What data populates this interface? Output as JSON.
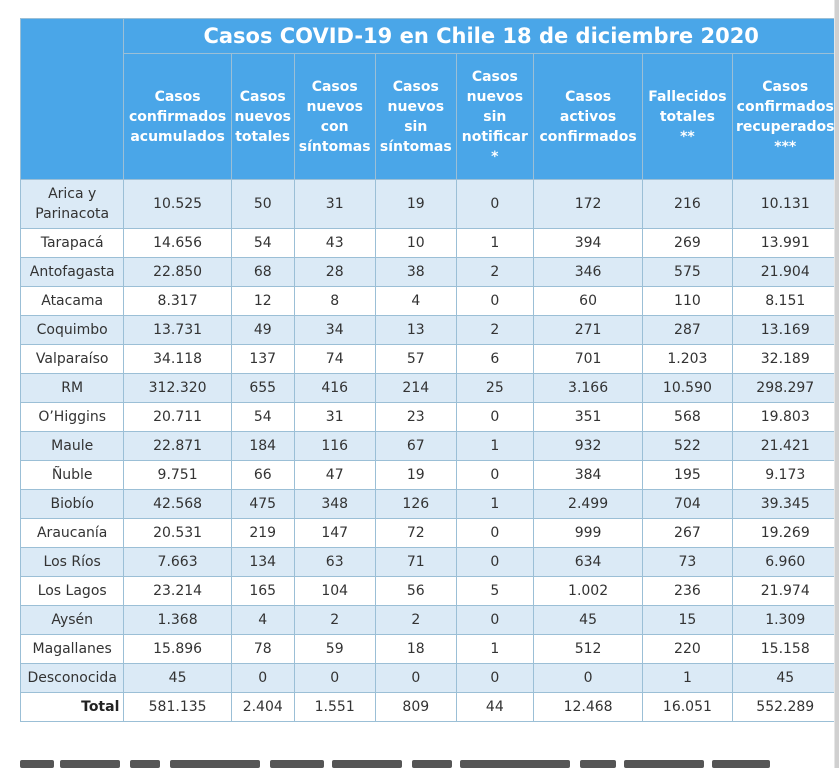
{
  "table": {
    "title": "Casos COVID-19 en Chile 18 de diciembre 2020",
    "headers": [
      [
        "Casos",
        "confirmados",
        "acumulados"
      ],
      [
        "Casos",
        "nuevos",
        "totales"
      ],
      [
        "Casos",
        "nuevos",
        "con",
        "síntomas"
      ],
      [
        "Casos",
        "nuevos",
        "sin",
        "síntomas"
      ],
      [
        "Casos",
        "nuevos",
        "sin",
        "notificar",
        "*"
      ],
      [
        "Casos",
        "activos",
        "confirmados"
      ],
      [
        "Fallecidos",
        "totales",
        "**"
      ],
      [
        "Casos",
        "confirmados",
        "recuperados",
        "***"
      ]
    ],
    "rows": [
      {
        "region": "Arica y Parinacota",
        "values": [
          "10.525",
          "50",
          "31",
          "19",
          "0",
          "172",
          "216",
          "10.131"
        ]
      },
      {
        "region": "Tarapacá",
        "values": [
          "14.656",
          "54",
          "43",
          "10",
          "1",
          "394",
          "269",
          "13.991"
        ]
      },
      {
        "region": "Antofagasta",
        "values": [
          "22.850",
          "68",
          "28",
          "38",
          "2",
          "346",
          "575",
          "21.904"
        ]
      },
      {
        "region": "Atacama",
        "values": [
          "8.317",
          "12",
          "8",
          "4",
          "0",
          "60",
          "110",
          "8.151"
        ]
      },
      {
        "region": "Coquimbo",
        "values": [
          "13.731",
          "49",
          "34",
          "13",
          "2",
          "271",
          "287",
          "13.169"
        ]
      },
      {
        "region": "Valparaíso",
        "values": [
          "34.118",
          "137",
          "74",
          "57",
          "6",
          "701",
          "1.203",
          "32.189"
        ]
      },
      {
        "region": "RM",
        "values": [
          "312.320",
          "655",
          "416",
          "214",
          "25",
          "3.166",
          "10.590",
          "298.297"
        ]
      },
      {
        "region": "O’Higgins",
        "values": [
          "20.711",
          "54",
          "31",
          "23",
          "0",
          "351",
          "568",
          "19.803"
        ]
      },
      {
        "region": "Maule",
        "values": [
          "22.871",
          "184",
          "116",
          "67",
          "1",
          "932",
          "522",
          "21.421"
        ]
      },
      {
        "region": "Ñuble",
        "values": [
          "9.751",
          "66",
          "47",
          "19",
          "0",
          "384",
          "195",
          "9.173"
        ]
      },
      {
        "region": "Biobío",
        "values": [
          "42.568",
          "475",
          "348",
          "126",
          "1",
          "2.499",
          "704",
          "39.345"
        ]
      },
      {
        "region": "Araucanía",
        "values": [
          "20.531",
          "219",
          "147",
          "72",
          "0",
          "999",
          "267",
          "19.269"
        ]
      },
      {
        "region": "Los Ríos",
        "values": [
          "7.663",
          "134",
          "63",
          "71",
          "0",
          "634",
          "73",
          "6.960"
        ]
      },
      {
        "region": "Los Lagos",
        "values": [
          "23.214",
          "165",
          "104",
          "56",
          "5",
          "1.002",
          "236",
          "21.974"
        ]
      },
      {
        "region": "Aysén",
        "values": [
          "1.368",
          "4",
          "2",
          "2",
          "0",
          "45",
          "15",
          "1.309"
        ]
      },
      {
        "region": "Magallanes",
        "values": [
          "15.896",
          "78",
          "59",
          "18",
          "1",
          "512",
          "220",
          "15.158"
        ]
      },
      {
        "region": "Desconocida",
        "values": [
          "45",
          "0",
          "0",
          "0",
          "0",
          "0",
          "1",
          "45"
        ]
      }
    ],
    "total": {
      "label": "Total",
      "values": [
        "581.135",
        "2.404",
        "1.551",
        "809",
        "44",
        "12.468",
        "16.051",
        "552.289"
      ]
    }
  },
  "colors": {
    "header_bg": "#4aa6e8",
    "header_text": "#ffffff",
    "alt_row_bg": "#dbeaf6",
    "border": "#9bbfd6"
  }
}
